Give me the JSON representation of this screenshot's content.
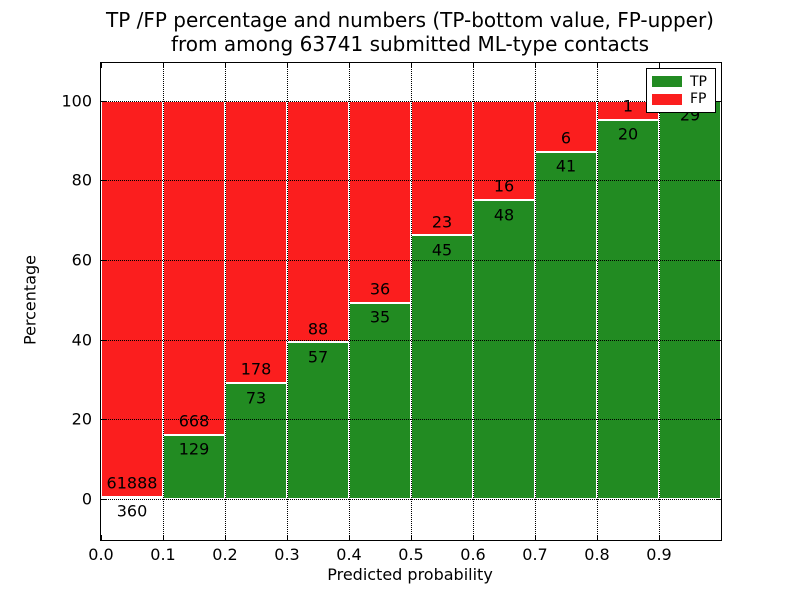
{
  "title": {
    "line1": "TP /FP percentage and numbers (TP-bottom value, FP-upper)",
    "line2": "from among 63741 submitted ML-type contacts"
  },
  "axes": {
    "ylabel": "Percentage",
    "xlabel": "Predicted probability",
    "yticks": [
      "0",
      "20",
      "40",
      "60",
      "80",
      "100"
    ],
    "ytick_values": [
      0,
      20,
      40,
      60,
      80,
      100
    ],
    "xticks": [
      "0.0",
      "0.1",
      "0.2",
      "0.3",
      "0.4",
      "0.5",
      "0.6",
      "0.7",
      "0.8",
      "0.9"
    ],
    "xtick_values": [
      0,
      0.1,
      0.2,
      0.3,
      0.4,
      0.5,
      0.6,
      0.7,
      0.8,
      0.9
    ]
  },
  "legend": [
    {
      "label": "TP",
      "color": "#228b22"
    },
    {
      "label": "FP",
      "color": "#fb1e1e"
    }
  ],
  "chart_data": {
    "type": "bar",
    "stacked": true,
    "normalized": "percent (TP+FP = 100% per bin)",
    "title": "TP /FP percentage and numbers (TP-bottom value, FP-upper) from among 63741 submitted ML-type contacts",
    "xlabel": "Predicted probability",
    "ylabel": "Percentage",
    "xlim": [
      0,
      1.0
    ],
    "ylim": [
      -10.3,
      109.5
    ],
    "grid": true,
    "legend_position": "upper right",
    "total_contacts": 63741,
    "series": [
      {
        "name": "TP",
        "color": "#228b22"
      },
      {
        "name": "FP",
        "color": "#fb1e1e"
      }
    ],
    "bins": [
      {
        "x0": 0.0,
        "x1": 0.1,
        "tp": 360,
        "fp": 61888,
        "tp_label": "360",
        "fp_label": "61888"
      },
      {
        "x0": 0.1,
        "x1": 0.2,
        "tp": 129,
        "fp": 668,
        "tp_label": "129",
        "fp_label": "668"
      },
      {
        "x0": 0.2,
        "x1": 0.3,
        "tp": 73,
        "fp": 178,
        "tp_label": "73",
        "fp_label": "178"
      },
      {
        "x0": 0.3,
        "x1": 0.4,
        "tp": 57,
        "fp": 88,
        "tp_label": "57",
        "fp_label": "88"
      },
      {
        "x0": 0.4,
        "x1": 0.5,
        "tp": 35,
        "fp": 36,
        "tp_label": "35",
        "fp_label": "36"
      },
      {
        "x0": 0.5,
        "x1": 0.6,
        "tp": 45,
        "fp": 23,
        "tp_label": "45",
        "fp_label": "23"
      },
      {
        "x0": 0.6,
        "x1": 0.7,
        "tp": 48,
        "fp": 16,
        "tp_label": "48",
        "fp_label": "16"
      },
      {
        "x0": 0.7,
        "x1": 0.8,
        "tp": 41,
        "fp": 6,
        "tp_label": "41",
        "fp_label": "6"
      },
      {
        "x0": 0.8,
        "x1": 0.9,
        "tp": 20,
        "fp": 1,
        "tp_label": "20",
        "fp_label": "1"
      },
      {
        "x0": 0.9,
        "x1": 1.0,
        "tp": 29,
        "fp": 0,
        "tp_label": "29",
        "fp_label": ""
      }
    ]
  }
}
